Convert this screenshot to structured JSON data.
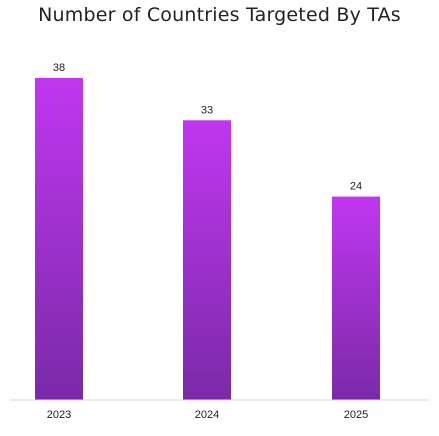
{
  "chart_data": {
    "type": "bar",
    "title": "Number of Countries Targeted By TAs",
    "categories": [
      "2023",
      "2024",
      "2025"
    ],
    "values": [
      38,
      33,
      24
    ],
    "ylim": [
      0,
      42
    ],
    "grid": false,
    "bar_gradient": {
      "top": "#c037f0",
      "bottom": "#7a2aa8"
    },
    "baseline_color": "#d9d9d9"
  }
}
